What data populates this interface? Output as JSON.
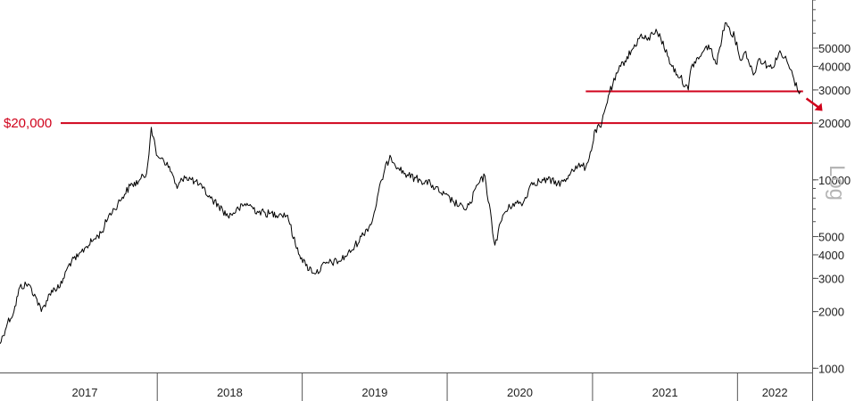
{
  "chart_data": {
    "type": "line",
    "title": "",
    "xlabel": "",
    "ylabel": "",
    "scale_label": "Log",
    "y_scale": "log",
    "ylim": [
      950,
      90000
    ],
    "xlim": [
      "2016-12-01",
      "2022-07-08"
    ],
    "y_ticks": [
      1000,
      2000,
      3000,
      4000,
      5000,
      10000,
      20000,
      30000,
      40000,
      50000
    ],
    "y_tick_labels": [
      "1000",
      "2000",
      "3000",
      "4000",
      "5000",
      "10000",
      "20000",
      "30000",
      "40000",
      "50000"
    ],
    "x_ticks": [
      "2017-01-01",
      "2018-01-01",
      "2019-01-01",
      "2020-01-01",
      "2021-01-01",
      "2022-01-01"
    ],
    "x_tick_labels": [
      "2017",
      "2018",
      "2019",
      "2020",
      "2021",
      "2022"
    ],
    "grid": false,
    "annotations": [
      {
        "type": "hline",
        "label": "$20,000",
        "y": 20000,
        "x_start": "2016-12-01",
        "x_end": "2022-07-08",
        "color": "#d0021b"
      },
      {
        "type": "hline",
        "label": "",
        "y": 29500,
        "x_start": "2020-12-15",
        "x_end": "2022-06-15",
        "color": "#d0021b"
      },
      {
        "type": "arrow",
        "label": "",
        "direction": "down-right",
        "color": "#d0021b"
      }
    ],
    "series": [
      {
        "color": "#000000",
        "x": [
          "2016-12-01",
          "2016-12-20",
          "2017-01-05",
          "2017-01-20",
          "2017-02-10",
          "2017-03-01",
          "2017-03-15",
          "2017-04-10",
          "2017-05-01",
          "2017-05-25",
          "2017-06-15",
          "2017-07-05",
          "2017-07-20",
          "2017-08-15",
          "2017-09-01",
          "2017-09-15",
          "2017-10-05",
          "2017-10-25",
          "2017-11-15",
          "2017-12-05",
          "2017-12-17",
          "2017-12-30",
          "2018-01-15",
          "2018-02-06",
          "2018-02-20",
          "2018-03-10",
          "2018-04-05",
          "2018-04-25",
          "2018-05-15",
          "2018-06-05",
          "2018-06-28",
          "2018-07-25",
          "2018-08-15",
          "2018-09-10",
          "2018-10-10",
          "2018-11-05",
          "2018-11-25",
          "2018-12-15",
          "2019-01-10",
          "2019-02-05",
          "2019-03-01",
          "2019-04-05",
          "2019-05-05",
          "2019-05-30",
          "2019-06-26",
          "2019-07-20",
          "2019-08-10",
          "2019-09-01",
          "2019-09-25",
          "2019-10-25",
          "2019-11-20",
          "2019-12-17",
          "2020-01-15",
          "2020-02-12",
          "2020-03-01",
          "2020-03-12",
          "2020-04-05",
          "2020-04-30",
          "2020-05-20",
          "2020-06-15",
          "2020-07-10",
          "2020-08-01",
          "2020-08-20",
          "2020-09-10",
          "2020-10-05",
          "2020-10-25",
          "2020-11-10",
          "2020-11-25",
          "2020-12-15",
          "2021-01-01",
          "2021-01-08",
          "2021-01-22",
          "2021-02-10",
          "2021-02-21",
          "2021-03-13",
          "2021-04-14",
          "2021-05-01",
          "2021-05-19",
          "2021-06-10",
          "2021-06-22",
          "2021-07-20",
          "2021-08-10",
          "2021-08-30",
          "2021-09-07",
          "2021-09-28",
          "2021-10-20",
          "2021-11-10",
          "2021-11-25",
          "2021-12-04",
          "2021-12-25",
          "2022-01-10",
          "2022-01-22",
          "2022-02-10",
          "2022-02-24",
          "2022-03-28",
          "2022-04-15",
          "2022-05-05",
          "2022-05-12",
          "2022-05-20",
          "2022-06-01",
          "2022-06-08"
        ],
        "y": [
          1350,
          1750,
          2000,
          2700,
          2800,
          2400,
          2000,
          2600,
          2700,
          3600,
          3900,
          4400,
          4700,
          5300,
          6500,
          7000,
          8100,
          9300,
          9800,
          10800,
          19000,
          13500,
          13000,
          11000,
          9000,
          10500,
          9800,
          9000,
          8000,
          7300,
          6400,
          7000,
          7500,
          6800,
          6600,
          6600,
          6500,
          4500,
          3500,
          3200,
          3600,
          3700,
          4200,
          5000,
          6000,
          10000,
          13500,
          11500,
          10500,
          10000,
          9500,
          8500,
          7700,
          7000,
          7500,
          9000,
          10500,
          4500,
          6500,
          7500,
          7500,
          9700,
          9800,
          10000,
          9600,
          9800,
          11400,
          11800,
          11700,
          15300,
          18500,
          19000,
          28000,
          32000,
          40000,
          50000,
          58000,
          55000,
          63000,
          56000,
          40000,
          35000,
          30000,
          40000,
          45000,
          52000,
          41000,
          62000,
          68000,
          57000,
          43000,
          48000,
          36000,
          44000,
          39000,
          47000,
          43000,
          39000,
          36000,
          30000,
          29500
        ]
      }
    ]
  }
}
